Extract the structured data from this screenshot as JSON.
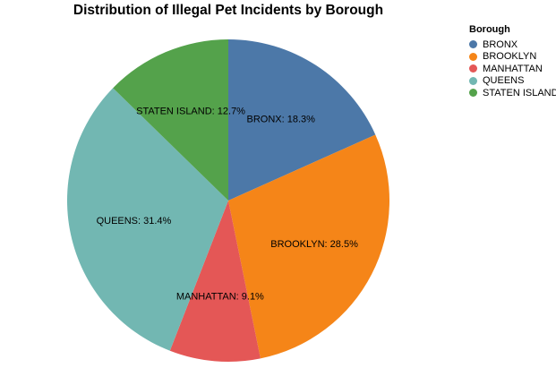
{
  "chart_data": {
    "type": "pie",
    "title": "Distribution of Illegal Pet Incidents by Borough",
    "legend_title": "Borough",
    "legend_position": "top-right",
    "categories": [
      "BRONX",
      "BROOKLYN",
      "MANHATTAN",
      "QUEENS",
      "STATEN ISLAND"
    ],
    "values": [
      18.3,
      28.5,
      9.1,
      31.4,
      12.7
    ],
    "labels": [
      "BRONX: 18.3%",
      "BROOKLYN: 28.5%",
      "MANHATTAN: 9.1%",
      "QUEENS: 31.4%",
      "STATEN ISLAND: 12.7%"
    ],
    "colors": [
      "#4c78a8",
      "#f58518",
      "#e45756",
      "#72b7b2",
      "#54a24b"
    ]
  }
}
